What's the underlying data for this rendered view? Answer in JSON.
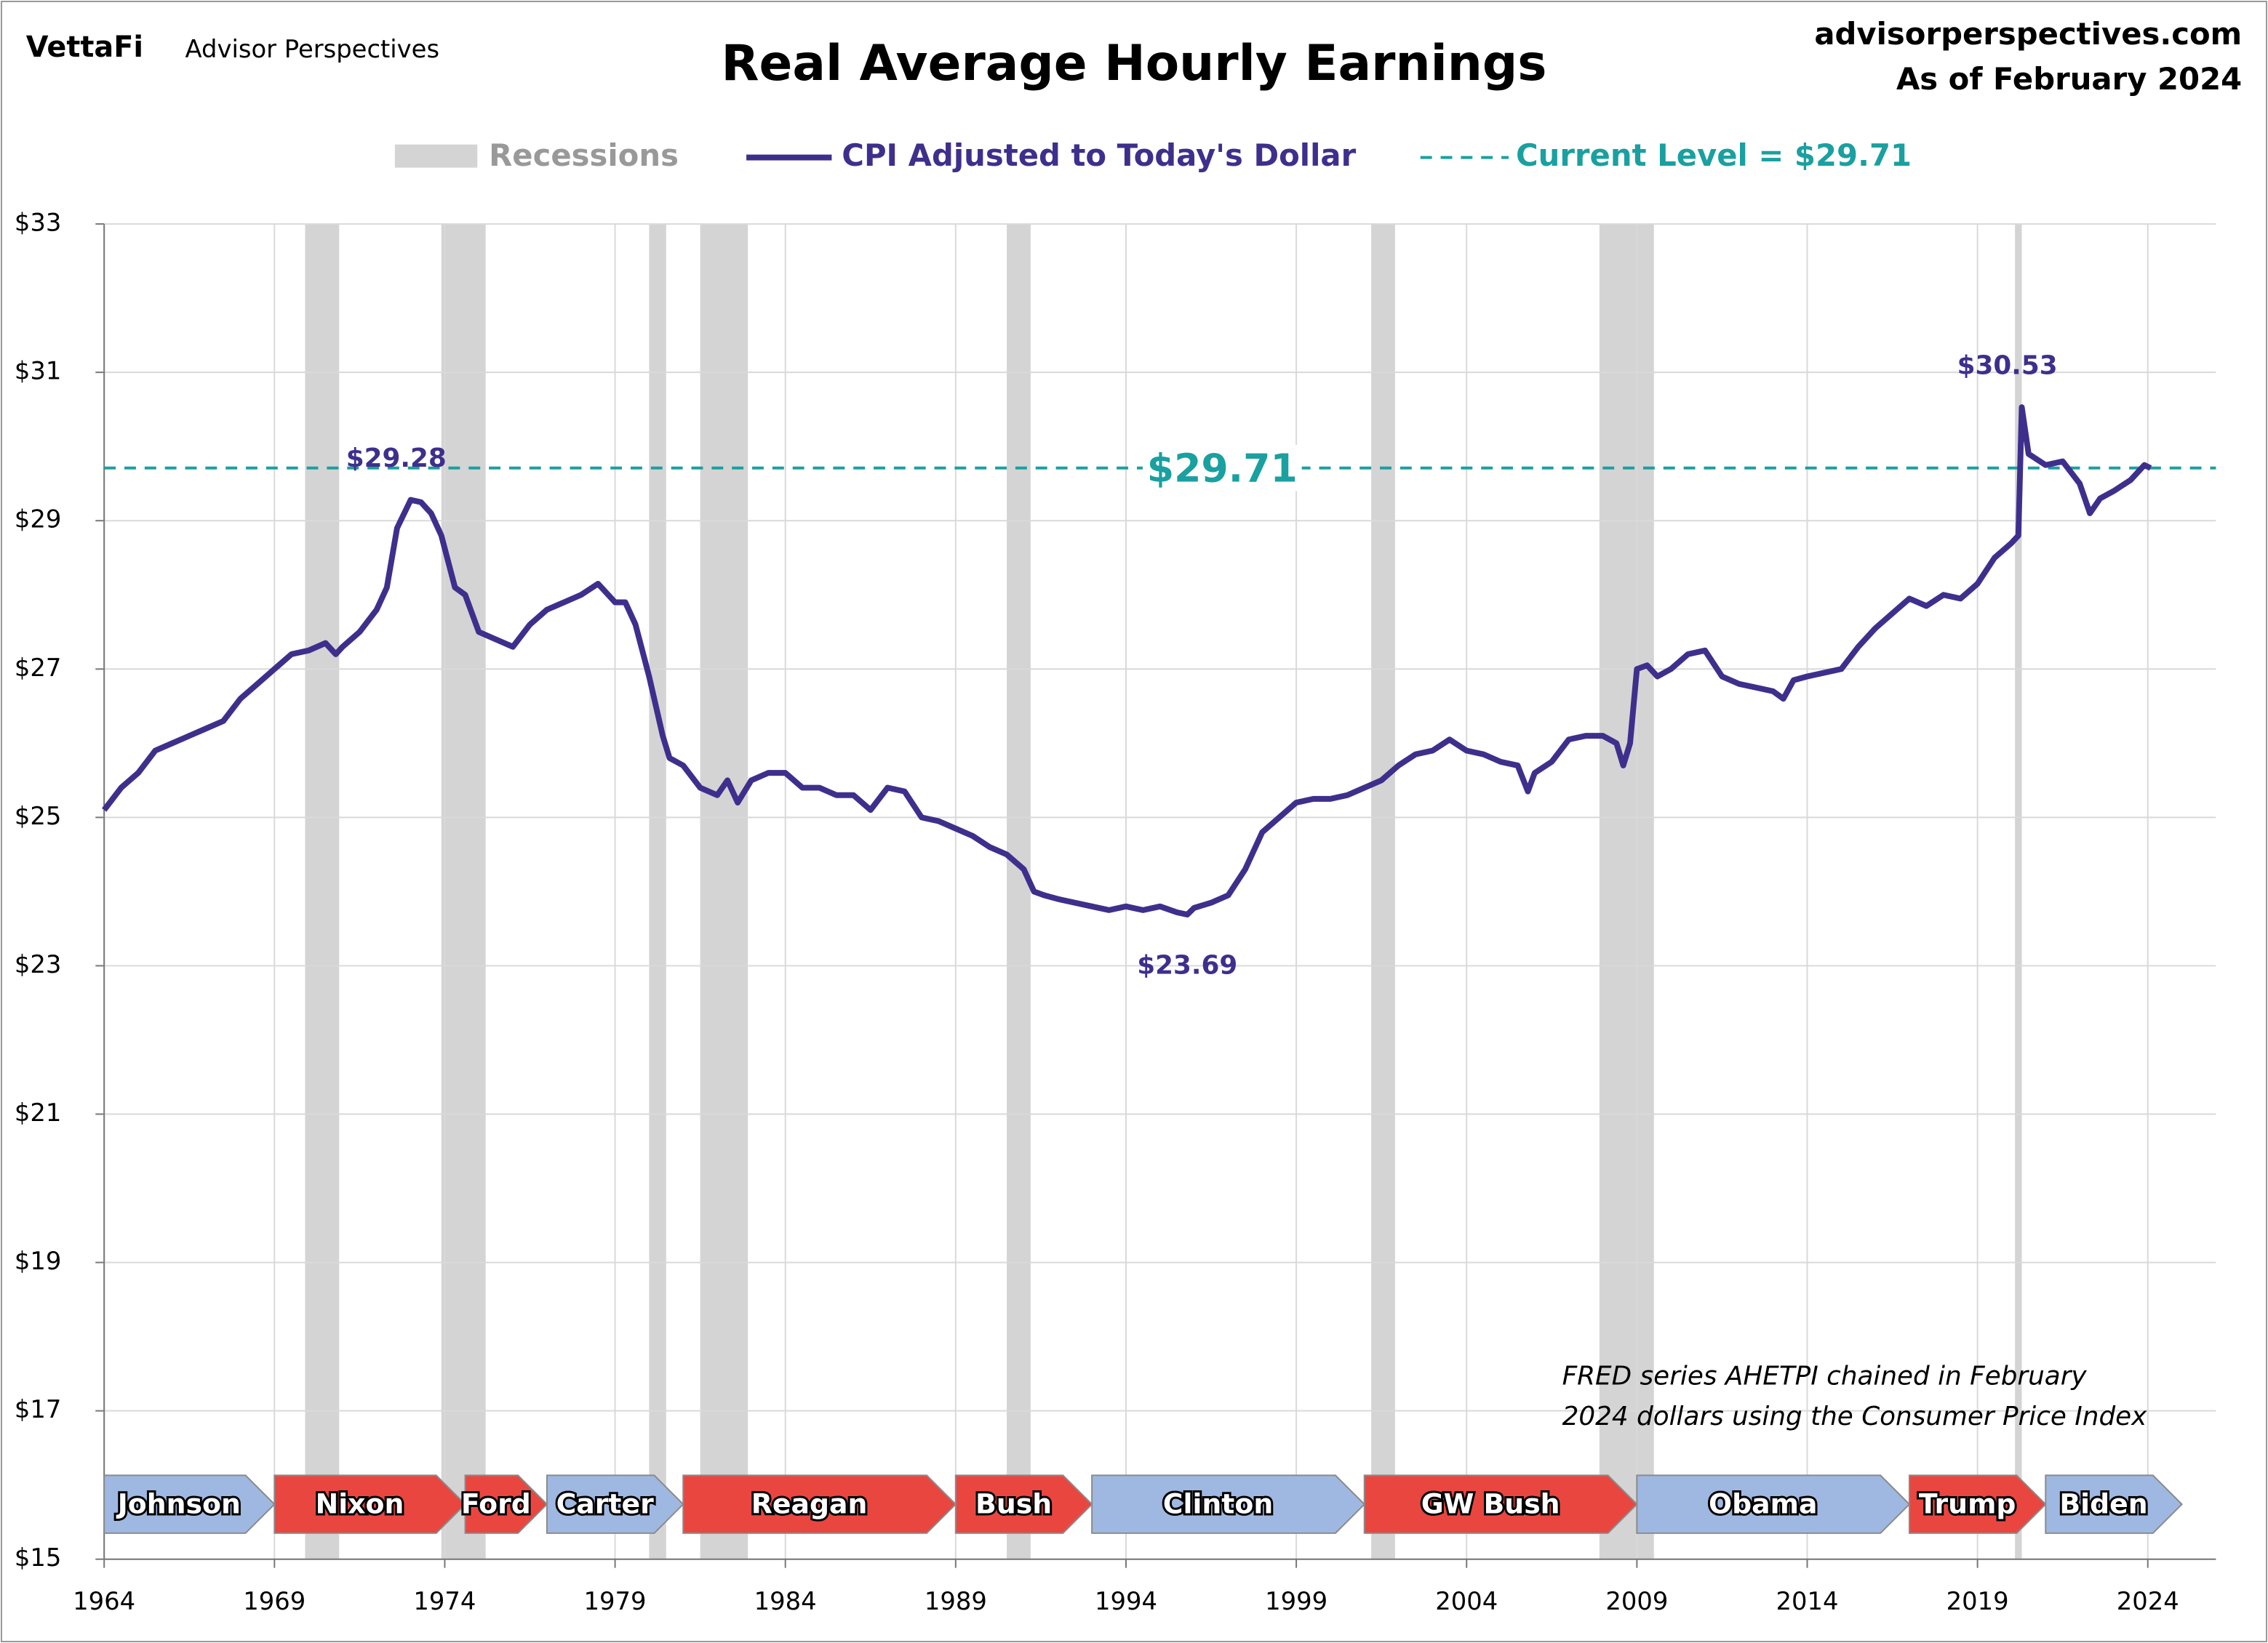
{
  "chart_data": {
    "type": "line",
    "title": "Real Average Hourly Earnings",
    "brand": "VettaFi",
    "publisher": "Advisor Perspectives",
    "site": "advisorperspectives.com",
    "as_of": "As of February 2024",
    "note": [
      "FRED series AHETPI chained in February",
      "2024 dollars using the Consumer Price Index"
    ],
    "recessions_name": "Recessions",
    "recession_color": "#d4d4d4",
    "recessions": [
      [
        1969.9,
        1970.9
      ],
      [
        1973.9,
        1975.2
      ],
      [
        1980.0,
        1980.5
      ],
      [
        1981.5,
        1982.9
      ],
      [
        1990.5,
        1991.2
      ],
      [
        2001.2,
        2001.9
      ],
      [
        2007.9,
        2009.5
      ],
      [
        2020.1,
        2020.3
      ]
    ],
    "reference": {
      "name": "Current Level = $29.71",
      "label": "$29.71",
      "value": 29.71,
      "color": "#1aa0a0"
    },
    "series": [
      {
        "name": "CPI Adjusted to Today's Dollar",
        "color": "#3f2f8c",
        "x": [
          1964.0,
          1964.5,
          1965.0,
          1965.5,
          1966,
          1966.5,
          1967,
          1967.5,
          1968,
          1968.5,
          1969,
          1969.5,
          1970,
          1970.5,
          1970.8,
          1971,
          1971.5,
          1972,
          1972.3,
          1972.6,
          1973.0,
          1973.3,
          1973.6,
          1973.9,
          1974.3,
          1974.6,
          1975.0,
          1975.5,
          1976,
          1976.5,
          1977,
          1977.5,
          1978,
          1978.5,
          1979,
          1979.3,
          1979.6,
          1980.0,
          1980.4,
          1980.6,
          1981,
          1981.5,
          1982,
          1982.3,
          1982.6,
          1983,
          1983.5,
          1984,
          1984.5,
          1985,
          1985.5,
          1986,
          1986.5,
          1987,
          1987.5,
          1988,
          1988.5,
          1989,
          1989.5,
          1990,
          1990.5,
          1991,
          1991.3,
          1991.6,
          1992,
          1992.5,
          1993,
          1993.5,
          1994,
          1994.5,
          1995,
          1995.5,
          1995.8,
          1996,
          1996.5,
          1997,
          1997.5,
          1998,
          1998.5,
          1999,
          1999.5,
          2000,
          2000.5,
          2001,
          2001.5,
          2002,
          2002.5,
          2003,
          2003.5,
          2004,
          2004.5,
          2005,
          2005.5,
          2005.8,
          2006,
          2006.5,
          2007,
          2007.5,
          2008,
          2008.4,
          2008.6,
          2008.8,
          2009.0,
          2009.3,
          2009.6,
          2010,
          2010.5,
          2011,
          2011.5,
          2012,
          2012.5,
          2013,
          2013.3,
          2013.6,
          2014,
          2014.5,
          2015,
          2015.5,
          2016,
          2016.5,
          2017,
          2017.5,
          2018,
          2018.5,
          2019,
          2019.5,
          2020.0,
          2020.2,
          2020.3,
          2020.5,
          2021,
          2021.5,
          2022,
          2022.3,
          2022.6,
          2023,
          2023.5,
          2023.9,
          2024.08
        ],
        "values": [
          25.1,
          25.4,
          25.6,
          25.9,
          26.0,
          26.1,
          26.2,
          26.3,
          26.6,
          26.8,
          27.0,
          27.2,
          27.25,
          27.35,
          27.2,
          27.3,
          27.5,
          27.8,
          28.1,
          28.9,
          29.28,
          29.25,
          29.1,
          28.8,
          28.1,
          28.0,
          27.5,
          27.4,
          27.3,
          27.6,
          27.8,
          27.9,
          28.0,
          28.15,
          27.9,
          27.9,
          27.6,
          26.9,
          26.1,
          25.8,
          25.7,
          25.4,
          25.3,
          25.5,
          25.2,
          25.5,
          25.6,
          25.6,
          25.4,
          25.4,
          25.3,
          25.3,
          25.1,
          25.4,
          25.35,
          25.0,
          24.95,
          24.85,
          24.75,
          24.6,
          24.5,
          24.3,
          24.0,
          23.95,
          23.9,
          23.85,
          23.8,
          23.75,
          23.8,
          23.75,
          23.8,
          23.72,
          23.69,
          23.78,
          23.85,
          23.95,
          24.3,
          24.8,
          25.0,
          25.2,
          25.25,
          25.25,
          25.3,
          25.4,
          25.5,
          25.7,
          25.85,
          25.9,
          26.05,
          25.9,
          25.85,
          25.75,
          25.7,
          25.35,
          25.6,
          25.75,
          26.05,
          26.1,
          26.1,
          26.0,
          25.7,
          26.0,
          27.0,
          27.05,
          26.9,
          27.0,
          27.2,
          27.25,
          26.9,
          26.8,
          26.75,
          26.7,
          26.6,
          26.85,
          26.9,
          26.95,
          27.0,
          27.3,
          27.55,
          27.75,
          27.95,
          27.85,
          28.0,
          27.95,
          28.15,
          28.5,
          28.7,
          28.8,
          30.53,
          29.9,
          29.75,
          29.8,
          29.5,
          29.1,
          29.3,
          29.4,
          29.55,
          29.75,
          29.71
        ]
      }
    ],
    "annotations": [
      {
        "text": "$29.28",
        "x": 1973.0,
        "y": 29.28
      },
      {
        "text": "$30.53",
        "x": 2020.3,
        "y": 30.53
      },
      {
        "text": "$23.69",
        "x": 1995.8,
        "y": 23.69
      }
    ],
    "presidents": [
      {
        "name": "Johnson",
        "start": 1964,
        "end": 1969,
        "color": "#9fb8e2"
      },
      {
        "name": "Nixon",
        "start": 1969,
        "end": 1974.6,
        "color": "#ea4640"
      },
      {
        "name": "Ford",
        "start": 1974.6,
        "end": 1977,
        "color": "#ea4640"
      },
      {
        "name": "Carter",
        "start": 1977,
        "end": 1981,
        "color": "#9fb8e2"
      },
      {
        "name": "Reagan",
        "start": 1981,
        "end": 1989,
        "color": "#ea4640"
      },
      {
        "name": "Bush",
        "start": 1989,
        "end": 1993,
        "color": "#ea4640"
      },
      {
        "name": "Clinton",
        "start": 1993,
        "end": 2001,
        "color": "#9fb8e2"
      },
      {
        "name": "GW Bush",
        "start": 2001,
        "end": 2009,
        "color": "#ea4640"
      },
      {
        "name": "Obama",
        "start": 2009,
        "end": 2017,
        "color": "#9fb8e2"
      },
      {
        "name": "Trump",
        "start": 2017,
        "end": 2021,
        "color": "#ea4640"
      },
      {
        "name": "Biden",
        "start": 2021,
        "end": 2025,
        "color": "#9fb8e2"
      }
    ],
    "xlim": [
      1964,
      2026
    ],
    "xticks": [
      1964,
      1969,
      1974,
      1979,
      1984,
      1989,
      1994,
      1999,
      2004,
      2009,
      2014,
      2019,
      2024
    ],
    "ylim": [
      15,
      33
    ],
    "yticks": [
      {
        "value": 15,
        "label": "$15"
      },
      {
        "value": 17,
        "label": "$17"
      },
      {
        "value": 19,
        "label": "$19"
      },
      {
        "value": 21,
        "label": "$21"
      },
      {
        "value": 23,
        "label": "$23"
      },
      {
        "value": 25,
        "label": "$25"
      },
      {
        "value": 27,
        "label": "$27"
      },
      {
        "value": 29,
        "label": "$29"
      },
      {
        "value": 31,
        "label": "$31"
      },
      {
        "value": 33,
        "label": "$33"
      }
    ],
    "grid": true
  }
}
